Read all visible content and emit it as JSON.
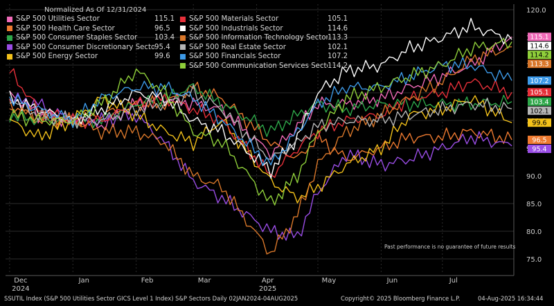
{
  "legend_title": "Normalized As Of 12/31/2024",
  "disclaimer": "Past performance is no guarantee of future results",
  "footer": {
    "index": "SSUTIL Index (S&P 500 Utilities Sector GICS Level 1 Index) S&P Sectors  Daily 02JAN2024-04AUG2025",
    "copyright": "Copyright© 2025 Bloomberg Finance L.P.",
    "timestamp": "04-Aug-2025 16:34:44"
  },
  "chart_data": {
    "type": "line",
    "title": "Normalized As Of 12/31/2024",
    "ylim": [
      72.5,
      121
    ],
    "yticks": [
      75.0,
      80.0,
      85.0,
      90.0,
      95.0,
      100.0,
      105.0,
      110.0,
      115.0,
      120.0
    ],
    "ytick_labels": [
      "75.0",
      "80.0",
      "85.0",
      "90.0",
      "95.0",
      "100.0",
      "105.0",
      "110.0",
      "115.0",
      "120.0"
    ],
    "x_domain": [
      "2024-11-29",
      "2025-08-05"
    ],
    "x_ticks": [
      {
        "date": "2024-12-01",
        "label": "Dec",
        "sublabel": "2024"
      },
      {
        "date": "2025-01-01",
        "label": "Jan",
        "sublabel": ""
      },
      {
        "date": "2025-02-01",
        "label": "Feb",
        "sublabel": ""
      },
      {
        "date": "2025-03-01",
        "label": "Mar",
        "sublabel": ""
      },
      {
        "date": "2025-04-01",
        "label": "Apr",
        "sublabel": "2025"
      },
      {
        "date": "2025-05-01",
        "label": "May",
        "sublabel": ""
      },
      {
        "date": "2025-06-01",
        "label": "Jun",
        "sublabel": ""
      },
      {
        "date": "2025-07-01",
        "label": "Jul",
        "sublabel": ""
      }
    ],
    "series": [
      {
        "name": "S&P 500 Utilities Sector",
        "last": "115.1",
        "color": "#f06ab8",
        "label_bg": "#f06ab8",
        "points": [
          [
            "2024-12-01",
            105
          ],
          [
            "2024-12-15",
            101
          ],
          [
            "2025-01-01",
            100
          ],
          [
            "2025-01-15",
            99
          ],
          [
            "2025-02-01",
            103
          ],
          [
            "2025-02-15",
            104
          ],
          [
            "2025-03-01",
            103
          ],
          [
            "2025-03-15",
            102
          ],
          [
            "2025-04-08",
            94
          ],
          [
            "2025-04-21",
            99
          ],
          [
            "2025-05-01",
            103
          ],
          [
            "2025-05-15",
            103
          ],
          [
            "2025-06-01",
            104
          ],
          [
            "2025-06-15",
            106
          ],
          [
            "2025-07-01",
            108
          ],
          [
            "2025-07-15",
            110
          ],
          [
            "2025-08-04",
            115.1
          ]
        ]
      },
      {
        "name": "S&P 500 Health Care Sector",
        "last": "96.5",
        "color": "#ee7a30",
        "label_bg": "#ee7a30",
        "points": [
          [
            "2024-12-01",
            103
          ],
          [
            "2024-12-15",
            100
          ],
          [
            "2025-01-01",
            100
          ],
          [
            "2025-01-15",
            101
          ],
          [
            "2025-02-01",
            103
          ],
          [
            "2025-02-15",
            103
          ],
          [
            "2025-03-01",
            106
          ],
          [
            "2025-03-15",
            104
          ],
          [
            "2025-04-08",
            96
          ],
          [
            "2025-04-21",
            93
          ],
          [
            "2025-05-01",
            97
          ],
          [
            "2025-05-15",
            93
          ],
          [
            "2025-06-01",
            95
          ],
          [
            "2025-06-15",
            97
          ],
          [
            "2025-07-01",
            97
          ],
          [
            "2025-07-15",
            98
          ],
          [
            "2025-08-04",
            96.5
          ]
        ]
      },
      {
        "name": "S&P 500 Consumer Staples Sector",
        "last": "103.4",
        "color": "#2ea84a",
        "label_bg": "#2ea84a",
        "points": [
          [
            "2024-12-01",
            101
          ],
          [
            "2024-12-15",
            100
          ],
          [
            "2025-01-01",
            100
          ],
          [
            "2025-01-15",
            100
          ],
          [
            "2025-02-01",
            103
          ],
          [
            "2025-02-15",
            104
          ],
          [
            "2025-03-01",
            106
          ],
          [
            "2025-03-15",
            103
          ],
          [
            "2025-04-08",
            98
          ],
          [
            "2025-04-21",
            101
          ],
          [
            "2025-05-01",
            103
          ],
          [
            "2025-05-15",
            102
          ],
          [
            "2025-06-01",
            103
          ],
          [
            "2025-06-15",
            103
          ],
          [
            "2025-07-01",
            103
          ],
          [
            "2025-07-15",
            103
          ],
          [
            "2025-08-04",
            103.4
          ]
        ]
      },
      {
        "name": "S&P 500 Consumer Discretionary Sector",
        "last": "95.4",
        "color": "#9a4de6",
        "label_bg": "#9a4de6",
        "points": [
          [
            "2024-12-01",
            104
          ],
          [
            "2024-12-15",
            103
          ],
          [
            "2025-01-01",
            100
          ],
          [
            "2025-01-15",
            100
          ],
          [
            "2025-02-01",
            101
          ],
          [
            "2025-02-15",
            96
          ],
          [
            "2025-03-01",
            89
          ],
          [
            "2025-03-15",
            86
          ],
          [
            "2025-04-08",
            80
          ],
          [
            "2025-04-21",
            79
          ],
          [
            "2025-05-01",
            87
          ],
          [
            "2025-05-15",
            94
          ],
          [
            "2025-06-01",
            92
          ],
          [
            "2025-06-15",
            93
          ],
          [
            "2025-07-01",
            95
          ],
          [
            "2025-07-15",
            97
          ],
          [
            "2025-08-04",
            95.4
          ]
        ]
      },
      {
        "name": "S&P 500 Energy Sector",
        "last": "99.6",
        "color": "#f4c21a",
        "label_bg": "#f4c21a",
        "points": [
          [
            "2024-12-01",
            100
          ],
          [
            "2024-12-15",
            97
          ],
          [
            "2025-01-01",
            100
          ],
          [
            "2025-01-15",
            104
          ],
          [
            "2025-02-01",
            101
          ],
          [
            "2025-02-15",
            98
          ],
          [
            "2025-03-01",
            96
          ],
          [
            "2025-03-15",
            100
          ],
          [
            "2025-04-08",
            89
          ],
          [
            "2025-04-21",
            86
          ],
          [
            "2025-05-01",
            88
          ],
          [
            "2025-05-15",
            92
          ],
          [
            "2025-06-01",
            95
          ],
          [
            "2025-06-15",
            101
          ],
          [
            "2025-07-01",
            102
          ],
          [
            "2025-07-15",
            104
          ],
          [
            "2025-08-04",
            99.6
          ]
        ]
      },
      {
        "name": "S&P 500 Materials Sector",
        "last": "105.1",
        "color": "#e8303a",
        "label_bg": "#e8303a",
        "points": [
          [
            "2024-12-01",
            109
          ],
          [
            "2024-12-15",
            102
          ],
          [
            "2025-01-01",
            100
          ],
          [
            "2025-01-15",
            100
          ],
          [
            "2025-02-01",
            103
          ],
          [
            "2025-02-15",
            104
          ],
          [
            "2025-03-01",
            102
          ],
          [
            "2025-03-15",
            100
          ],
          [
            "2025-04-08",
            90
          ],
          [
            "2025-04-21",
            95
          ],
          [
            "2025-05-01",
            98
          ],
          [
            "2025-05-15",
            100
          ],
          [
            "2025-06-01",
            101
          ],
          [
            "2025-06-15",
            104
          ],
          [
            "2025-07-01",
            105
          ],
          [
            "2025-07-15",
            107
          ],
          [
            "2025-08-04",
            105.1
          ]
        ]
      },
      {
        "name": "S&P 500 Industrials Sector",
        "last": "114.6",
        "color": "#ffffff",
        "label_bg": "#ffffff",
        "points": [
          [
            "2024-12-01",
            104
          ],
          [
            "2024-12-15",
            102
          ],
          [
            "2025-01-01",
            100
          ],
          [
            "2025-01-15",
            102
          ],
          [
            "2025-02-01",
            105
          ],
          [
            "2025-02-15",
            104
          ],
          [
            "2025-03-01",
            100
          ],
          [
            "2025-03-15",
            98
          ],
          [
            "2025-04-08",
            91
          ],
          [
            "2025-04-21",
            97
          ],
          [
            "2025-05-01",
            105
          ],
          [
            "2025-05-15",
            109
          ],
          [
            "2025-06-01",
            110
          ],
          [
            "2025-06-15",
            113
          ],
          [
            "2025-07-01",
            115
          ],
          [
            "2025-07-15",
            117
          ],
          [
            "2025-08-04",
            114.6
          ]
        ]
      },
      {
        "name": "S&P 500 Information Technology Sector",
        "last": "113.3",
        "color": "#d9772a",
        "label_bg": "#d9772a",
        "points": [
          [
            "2024-12-01",
            102
          ],
          [
            "2024-12-15",
            101
          ],
          [
            "2025-01-01",
            100
          ],
          [
            "2025-01-15",
            98
          ],
          [
            "2025-02-01",
            98
          ],
          [
            "2025-02-15",
            96
          ],
          [
            "2025-03-01",
            90
          ],
          [
            "2025-03-15",
            88
          ],
          [
            "2025-04-08",
            76
          ],
          [
            "2025-04-21",
            83
          ],
          [
            "2025-05-01",
            92
          ],
          [
            "2025-05-15",
            98
          ],
          [
            "2025-06-01",
            101
          ],
          [
            "2025-06-15",
            104
          ],
          [
            "2025-07-01",
            107
          ],
          [
            "2025-07-15",
            111
          ],
          [
            "2025-08-04",
            113.3
          ]
        ]
      },
      {
        "name": "S&P 500 Real Estate Sector",
        "last": "102.1",
        "color": "#b5b5b5",
        "label_bg": "#b5b5b5",
        "points": [
          [
            "2024-12-01",
            104
          ],
          [
            "2024-12-15",
            101
          ],
          [
            "2025-01-01",
            100
          ],
          [
            "2025-01-15",
            100
          ],
          [
            "2025-02-01",
            102
          ],
          [
            "2025-02-15",
            103
          ],
          [
            "2025-03-01",
            105
          ],
          [
            "2025-03-15",
            102
          ],
          [
            "2025-04-08",
            93
          ],
          [
            "2025-04-21",
            96
          ],
          [
            "2025-05-01",
            99
          ],
          [
            "2025-05-15",
            100
          ],
          [
            "2025-06-01",
            100
          ],
          [
            "2025-06-15",
            101
          ],
          [
            "2025-07-01",
            102
          ],
          [
            "2025-07-15",
            103
          ],
          [
            "2025-08-04",
            102.1
          ]
        ]
      },
      {
        "name": "S&P 500 Financials Sector",
        "last": "107.2",
        "color": "#3d9ae8",
        "label_bg": "#3d9ae8",
        "points": [
          [
            "2024-12-01",
            104
          ],
          [
            "2024-12-15",
            102
          ],
          [
            "2025-01-01",
            100
          ],
          [
            "2025-01-15",
            104
          ],
          [
            "2025-02-01",
            106
          ],
          [
            "2025-02-15",
            106
          ],
          [
            "2025-03-01",
            104
          ],
          [
            "2025-03-15",
            100
          ],
          [
            "2025-04-08",
            92
          ],
          [
            "2025-04-21",
            98
          ],
          [
            "2025-05-01",
            103
          ],
          [
            "2025-05-15",
            106
          ],
          [
            "2025-06-01",
            106
          ],
          [
            "2025-06-15",
            108
          ],
          [
            "2025-07-01",
            110
          ],
          [
            "2025-07-15",
            110
          ],
          [
            "2025-08-04",
            107.2
          ]
        ]
      },
      {
        "name": "S&P 500 Communication Services Sector",
        "last": "114.2",
        "color": "#8fcf3a",
        "label_bg": "#8fcf3a",
        "points": [
          [
            "2024-12-01",
            101
          ],
          [
            "2024-12-15",
            100
          ],
          [
            "2025-01-01",
            100
          ],
          [
            "2025-01-15",
            103
          ],
          [
            "2025-02-01",
            109
          ],
          [
            "2025-02-15",
            105
          ],
          [
            "2025-03-01",
            98
          ],
          [
            "2025-03-15",
            96
          ],
          [
            "2025-04-08",
            85
          ],
          [
            "2025-04-21",
            90
          ],
          [
            "2025-05-01",
            98
          ],
          [
            "2025-05-15",
            104
          ],
          [
            "2025-06-01",
            106
          ],
          [
            "2025-06-15",
            108
          ],
          [
            "2025-07-01",
            110
          ],
          [
            "2025-07-15",
            113
          ],
          [
            "2025-08-04",
            114.2
          ]
        ]
      }
    ]
  }
}
